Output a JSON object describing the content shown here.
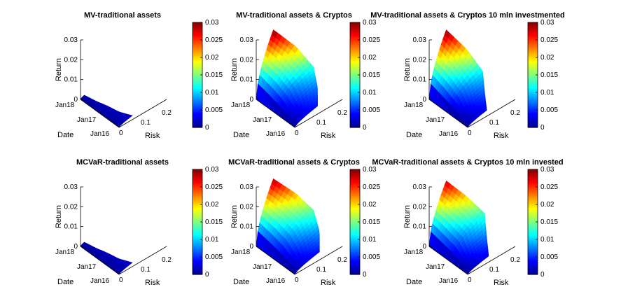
{
  "colors": {
    "colormap": "jet",
    "jet_stops": [
      "#00008f",
      "#0000ff",
      "#0080ff",
      "#00ffff",
      "#80ff80",
      "#ffff00",
      "#ff8000",
      "#ff0000",
      "#800000"
    ],
    "axis": "#000000",
    "background": "#ffffff"
  },
  "chart_data": [
    {
      "type": "surface",
      "title": "MV-traditional assets",
      "xlabel": "Risk",
      "ylabel": "Date",
      "zlabel": "Return",
      "xlim": [
        0,
        0.25
      ],
      "zlim": [
        0,
        0.03
      ],
      "xticks": [
        "0",
        "0.1",
        "0.2"
      ],
      "yticks": [
        "Jan18",
        "Jan17",
        "Jan16"
      ],
      "zticks": [
        "0",
        "0.01",
        "0.02",
        "0.03"
      ],
      "colorbar": {
        "clim": [
          0,
          0.03
        ],
        "ticks": [
          "0",
          "0.005",
          "0.01",
          "0.015",
          "0.02",
          "0.025",
          "0.03"
        ]
      },
      "surface": {
        "date_frac": [
          0,
          0.25,
          0.5,
          0.75,
          1
        ],
        "risk_frac": [
          0,
          0.5,
          1
        ],
        "return_max": [
          0.001,
          0.001,
          0.0015,
          0.0015,
          0.002
        ],
        "risk_max": [
          0.02,
          0.03,
          0.04,
          0.05,
          0.07
        ]
      }
    },
    {
      "type": "surface",
      "title": "MV-traditional assets & Cryptos",
      "xlabel": "Risk",
      "ylabel": "Date",
      "zlabel": "Return",
      "xlim": [
        0,
        0.25
      ],
      "zlim": [
        0,
        0.03
      ],
      "xticks": [
        "0",
        "0.1",
        "0.2"
      ],
      "yticks": [
        "Jan18",
        "Jan17",
        "Jan16"
      ],
      "zticks": [
        "0",
        "0.01",
        "0.02",
        "0.03"
      ],
      "colorbar": {
        "clim": [
          0,
          0.03
        ],
        "ticks": [
          "0",
          "0.005",
          "0.01",
          "0.015",
          "0.02",
          "0.025",
          "0.03"
        ]
      },
      "surface": {
        "date_frac": [
          0,
          0.25,
          0.5,
          0.75,
          1
        ],
        "risk_frac": [
          0,
          0.25,
          0.5,
          0.75,
          1
        ],
        "return_max": [
          0.03,
          0.021,
          0.012,
          0.007,
          0.004
        ],
        "risk_max": [
          0.09,
          0.16,
          0.2,
          0.17,
          0.12
        ]
      }
    },
    {
      "type": "surface",
      "title": "MV-traditional assets & Cryptos 10 mln investmented",
      "xlabel": "Risk",
      "ylabel": "Date",
      "zlabel": "Return",
      "xlim": [
        0,
        0.25
      ],
      "zlim": [
        0,
        0.03
      ],
      "xticks": [
        "0",
        "0.1",
        "0.2"
      ],
      "yticks": [
        "Jan18",
        "Jan17",
        "Jan16"
      ],
      "zticks": [
        "0",
        "0.01",
        "0.02",
        "0.03"
      ],
      "colorbar": {
        "clim": [
          0,
          0.03
        ],
        "ticks": [
          "0",
          "0.005",
          "0.01",
          "0.015",
          "0.02",
          "0.025",
          "0.03"
        ]
      },
      "surface": {
        "date_frac": [
          0,
          0.25,
          0.5,
          0.75,
          1
        ],
        "risk_frac": [
          0,
          0.25,
          0.5,
          0.75,
          1
        ],
        "return_max": [
          0.03,
          0.02,
          0.011,
          0.006,
          0.003
        ],
        "risk_max": [
          0.09,
          0.15,
          0.18,
          0.14,
          0.1
        ]
      }
    },
    {
      "type": "surface",
      "title": "MCVaR-traditional assets",
      "xlabel": "Risk",
      "ylabel": "Date",
      "zlabel": "Return",
      "xlim": [
        0,
        0.25
      ],
      "zlim": [
        0,
        0.03
      ],
      "xticks": [
        "0",
        "0.1",
        "0.2"
      ],
      "yticks": [
        "Jan18",
        "Jan17",
        "Jan16"
      ],
      "zticks": [
        "0",
        "0.01",
        "0.02",
        "0.03"
      ],
      "colorbar": {
        "clim": [
          0,
          0.03
        ],
        "ticks": [
          "0",
          "0.005",
          "0.01",
          "0.015",
          "0.02",
          "0.025",
          "0.03"
        ]
      },
      "surface": {
        "date_frac": [
          0,
          0.25,
          0.5,
          0.75,
          1
        ],
        "risk_frac": [
          0,
          0.5,
          1
        ],
        "return_max": [
          0.001,
          0.001,
          0.0015,
          0.0015,
          0.002
        ],
        "risk_max": [
          0.02,
          0.03,
          0.04,
          0.05,
          0.07
        ]
      }
    },
    {
      "type": "surface",
      "title": "MCVaR-traditional assets & Cryptos",
      "xlabel": "Risk",
      "ylabel": "Date",
      "zlabel": "Return",
      "xlim": [
        0,
        0.25
      ],
      "zlim": [
        0,
        0.03
      ],
      "xticks": [
        "0",
        "0.1",
        "0.2"
      ],
      "yticks": [
        "Jan18",
        "Jan17",
        "Jan16"
      ],
      "zticks": [
        "0",
        "0.01",
        "0.02",
        "0.03"
      ],
      "colorbar": {
        "clim": [
          0,
          0.03
        ],
        "ticks": [
          "0",
          "0.005",
          "0.01",
          "0.015",
          "0.02",
          "0.025",
          "0.03"
        ]
      },
      "surface": {
        "date_frac": [
          0,
          0.25,
          0.5,
          0.75,
          1
        ],
        "risk_frac": [
          0,
          0.25,
          0.5,
          0.75,
          1
        ],
        "return_max": [
          0.029,
          0.021,
          0.014,
          0.008,
          0.004
        ],
        "risk_max": [
          0.09,
          0.16,
          0.2,
          0.18,
          0.13
        ]
      }
    },
    {
      "type": "surface",
      "title": "MCVaR-traditional assets & Cryptos 10 mln invested",
      "xlabel": "Risk",
      "ylabel": "Date",
      "zlabel": "Return",
      "xlim": [
        0,
        0.25
      ],
      "zlim": [
        0,
        0.03
      ],
      "xticks": [
        "0",
        "0.1",
        "0.2"
      ],
      "yticks": [
        "Jan18",
        "Jan17",
        "Jan16"
      ],
      "zticks": [
        "0",
        "0.01",
        "0.02",
        "0.03"
      ],
      "colorbar": {
        "clim": [
          0,
          0.03
        ],
        "ticks": [
          "0",
          "0.005",
          "0.01",
          "0.015",
          "0.02",
          "0.025",
          "0.03"
        ]
      },
      "surface": {
        "date_frac": [
          0,
          0.25,
          0.5,
          0.75,
          1
        ],
        "risk_frac": [
          0,
          0.25,
          0.5,
          0.75,
          1
        ],
        "return_max": [
          0.028,
          0.02,
          0.013,
          0.007,
          0.003
        ],
        "risk_max": [
          0.09,
          0.15,
          0.19,
          0.15,
          0.11
        ]
      }
    }
  ]
}
